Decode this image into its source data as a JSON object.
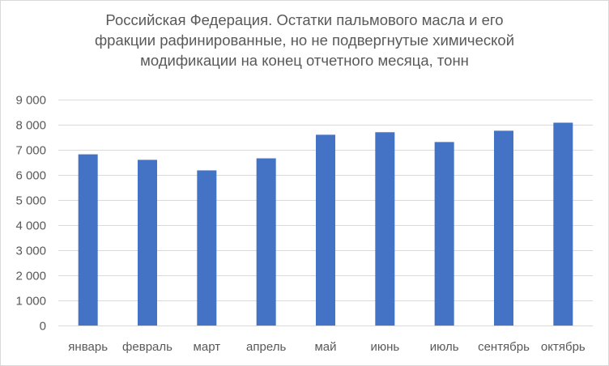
{
  "chart_data": {
    "type": "bar",
    "title_lines": [
      "Российская Федерация. Остатки пальмового масла и его",
      "фракции рафинированные, но не подвергнутые химической",
      "модификации на конец отчетного месяца, тонн"
    ],
    "categories": [
      "январь",
      "февраль",
      "март",
      "апрель",
      "май",
      "июнь",
      "июль",
      "сентябрь",
      "октябрь"
    ],
    "values": [
      6820,
      6600,
      6180,
      6660,
      7600,
      7700,
      7310,
      7760,
      8080
    ],
    "ylim": [
      0,
      9000
    ],
    "yticks": [
      0,
      1000,
      2000,
      3000,
      4000,
      5000,
      6000,
      7000,
      8000,
      9000
    ],
    "ytick_labels": [
      "0",
      "1 000",
      "2 000",
      "3 000",
      "4 000",
      "5 000",
      "6 000",
      "7 000",
      "8 000",
      "9 000"
    ],
    "grid": true,
    "legend": "none",
    "bar_color": "#4472c4",
    "grid_color": "#d9d9d9"
  }
}
